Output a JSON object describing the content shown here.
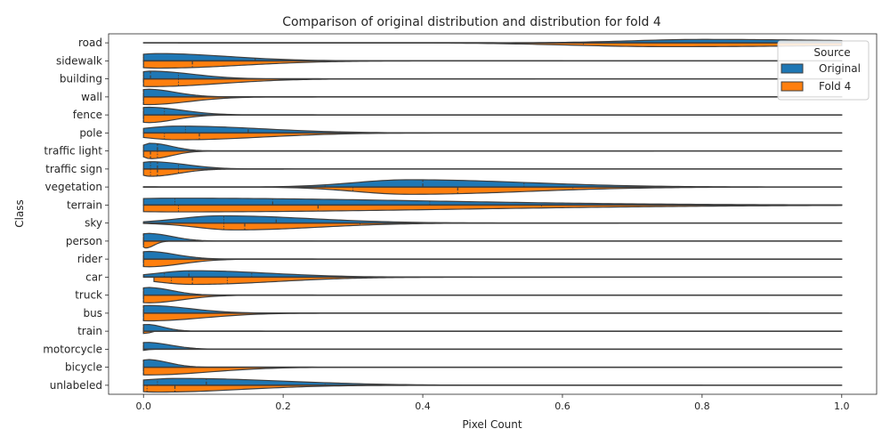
{
  "chart_data": {
    "type": "violin",
    "title": "Comparison of original distribution and distribution for fold 4",
    "xlabel": "Pixel Count",
    "ylabel": "Class",
    "xlim": [
      -0.05,
      1.05
    ],
    "xticks": [
      "0.0",
      "0.2",
      "0.4",
      "0.6",
      "0.8",
      "1.0"
    ],
    "xtick_values": [
      0.0,
      0.2,
      0.4,
      0.6,
      0.8,
      1.0
    ],
    "grid": false,
    "split": true,
    "legend": {
      "title": "Source",
      "position": "top-right"
    },
    "series": [
      {
        "name": "Original",
        "color": "#1f77b4"
      },
      {
        "name": "Fold 4",
        "color": "#ff7f0e"
      }
    ],
    "categories": [
      "road",
      "sidewalk",
      "building",
      "wall",
      "fence",
      "pole",
      "traffic light",
      "traffic sign",
      "vegetation",
      "terrain",
      "sky",
      "person",
      "rider",
      "car",
      "truck",
      "bus",
      "train",
      "motorcycle",
      "bicycle",
      "unlabeled"
    ],
    "violins": [
      {
        "class": "road",
        "original": {
          "min": 0.0,
          "max": 1.0,
          "peak": 0.8,
          "spread": 0.22,
          "scale": 0.4,
          "quartiles": [
            0.285,
            0.455,
            0.655
          ]
        },
        "fold": {
          "min": 0.05,
          "max": 1.0,
          "peak": 0.75,
          "spread": 0.3,
          "scale": 0.45,
          "quartiles": [
            0.26,
            0.47,
            0.63
          ]
        }
      },
      {
        "class": "sidewalk",
        "original": {
          "min": 0.0,
          "max": 1.0,
          "peak": 0.02,
          "spread": 0.1,
          "scale": 0.85,
          "quartiles": [
            0.0,
            0.16,
            0.26
          ]
        },
        "fold": {
          "min": 0.0,
          "max": 0.6,
          "peak": 0.02,
          "spread": 0.12,
          "scale": 0.85,
          "quartiles": [
            0.0,
            0.07,
            0.26
          ]
        }
      },
      {
        "class": "building",
        "original": {
          "min": 0.0,
          "max": 1.0,
          "peak": 0.01,
          "spread": 0.06,
          "scale": 0.9,
          "quartiles": [
            0.0,
            0.01,
            0.05
          ]
        },
        "fold": {
          "min": 0.0,
          "max": 0.56,
          "peak": 0.01,
          "spread": 0.1,
          "scale": 0.9,
          "quartiles": [
            0.0,
            0.0,
            0.05
          ]
        }
      },
      {
        "class": "wall",
        "original": {
          "min": 0.0,
          "max": 1.0,
          "peak": 0.005,
          "spread": 0.04,
          "scale": 0.9,
          "quartiles": [
            0.0,
            0.0,
            0.0
          ]
        },
        "fold": {
          "min": 0.0,
          "max": 1.0,
          "peak": 0.005,
          "spread": 0.06,
          "scale": 0.9,
          "quartiles": [
            0.0,
            0.0,
            0.0
          ]
        }
      },
      {
        "class": "fence",
        "original": {
          "min": 0.0,
          "max": 1.0,
          "peak": 0.005,
          "spread": 0.05,
          "scale": 0.9,
          "quartiles": [
            0.0,
            0.0,
            0.03
          ]
        },
        "fold": {
          "min": 0.0,
          "max": 1.0,
          "peak": 0.005,
          "spread": 0.04,
          "scale": 0.9,
          "quartiles": [
            0.0,
            0.0,
            0.0
          ]
        }
      },
      {
        "class": "pole",
        "original": {
          "min": 0.0,
          "max": 1.0,
          "peak": 0.05,
          "spread": 0.12,
          "scale": 0.8,
          "quartiles": [
            0.06,
            0.15,
            0.3
          ]
        },
        "fold": {
          "min": 0.0,
          "max": 0.94,
          "peak": 0.05,
          "spread": 0.12,
          "scale": 0.8,
          "quartiles": [
            0.03,
            0.08,
            0.32
          ]
        }
      },
      {
        "class": "traffic light",
        "original": {
          "min": 0.0,
          "max": 1.0,
          "peak": 0.01,
          "spread": 0.03,
          "scale": 0.9,
          "quartiles": [
            0.0,
            0.02,
            0.02
          ]
        },
        "fold": {
          "min": 0.0,
          "max": 0.73,
          "peak": 0.01,
          "spread": 0.03,
          "scale": 0.9,
          "quartiles": [
            0.0,
            0.01,
            0.02
          ]
        }
      },
      {
        "class": "traffic sign",
        "original": {
          "min": 0.0,
          "max": 1.0,
          "peak": 0.01,
          "spread": 0.05,
          "scale": 0.85,
          "quartiles": [
            0.01,
            0.02,
            0.05
          ]
        },
        "fold": {
          "min": 0.0,
          "max": 0.2,
          "peak": 0.01,
          "spread": 0.04,
          "scale": 0.85,
          "quartiles": [
            0.01,
            0.02,
            0.05
          ]
        }
      },
      {
        "class": "vegetation",
        "original": {
          "min": 0.0,
          "max": 1.0,
          "peak": 0.38,
          "spread": 0.17,
          "scale": 0.85,
          "quartiles": [
            0.26,
            0.4,
            0.545
          ]
        },
        "fold": {
          "min": 0.0,
          "max": 0.88,
          "peak": 0.38,
          "spread": 0.17,
          "scale": 0.85,
          "quartiles": [
            0.3,
            0.45,
            0.615
          ]
        }
      },
      {
        "class": "terrain",
        "original": {
          "min": 0.0,
          "max": 1.0,
          "peak": 0.05,
          "spread": 0.35,
          "scale": 0.8,
          "quartiles": [
            0.045,
            0.185,
            0.41
          ]
        },
        "fold": {
          "min": 0.0,
          "max": 1.0,
          "peak": 0.05,
          "spread": 0.4,
          "scale": 0.8,
          "quartiles": [
            0.05,
            0.25,
            0.57
          ]
        }
      },
      {
        "class": "sky",
        "original": {
          "min": 0.0,
          "max": 1.0,
          "peak": 0.11,
          "spread": 0.13,
          "scale": 0.85,
          "quartiles": [
            0.115,
            0.19,
            0.35
          ]
        },
        "fold": {
          "min": 0.0,
          "max": 0.68,
          "peak": 0.13,
          "spread": 0.12,
          "scale": 0.8,
          "quartiles": [
            0.115,
            0.145,
            0.31
          ]
        }
      },
      {
        "class": "person",
        "original": {
          "min": 0.0,
          "max": 1.0,
          "peak": 0.005,
          "spread": 0.035,
          "scale": 0.9,
          "quartiles": [
            0.0,
            0.0,
            0.0
          ]
        },
        "fold": {
          "min": 0.0,
          "max": 0.085,
          "peak": 0.003,
          "spread": 0.012,
          "scale": 0.8,
          "quartiles": [
            0.0,
            0.0,
            0.0
          ]
        }
      },
      {
        "class": "rider",
        "original": {
          "min": 0.0,
          "max": 1.0,
          "peak": 0.005,
          "spread": 0.04,
          "scale": 0.9,
          "quartiles": [
            0.0,
            0.0,
            0.0
          ]
        },
        "fold": {
          "min": 0.0,
          "max": 1.0,
          "peak": 0.005,
          "spread": 0.05,
          "scale": 0.9,
          "quartiles": [
            0.0,
            0.0,
            0.0
          ]
        }
      },
      {
        "class": "car",
        "original": {
          "min": 0.0,
          "max": 1.0,
          "peak": 0.07,
          "spread": 0.11,
          "scale": 0.75,
          "quartiles": [
            0.03,
            0.065,
            0.155
          ]
        },
        "fold": {
          "min": 0.015,
          "max": 0.47,
          "peak": 0.07,
          "spread": 0.12,
          "scale": 0.85,
          "quartiles": [
            0.04,
            0.07,
            0.12
          ]
        }
      },
      {
        "class": "truck",
        "original": {
          "min": 0.0,
          "max": 1.0,
          "peak": 0.005,
          "spread": 0.035,
          "scale": 0.9,
          "quartiles": [
            0.0,
            0.0,
            0.0
          ]
        },
        "fold": {
          "min": 0.0,
          "max": 1.0,
          "peak": 0.005,
          "spread": 0.05,
          "scale": 0.9,
          "quartiles": [
            0.0,
            0.0,
            0.0
          ]
        }
      },
      {
        "class": "bus",
        "original": {
          "min": 0.0,
          "max": 1.0,
          "peak": 0.005,
          "spread": 0.06,
          "scale": 0.9,
          "quartiles": [
            0.0,
            0.0,
            0.0
          ]
        },
        "fold": {
          "min": 0.0,
          "max": 0.895,
          "peak": 0.005,
          "spread": 0.08,
          "scale": 0.9,
          "quartiles": [
            0.0,
            0.0,
            0.0
          ]
        }
      },
      {
        "class": "train",
        "original": {
          "min": 0.0,
          "max": 1.0,
          "peak": 0.003,
          "spread": 0.025,
          "scale": 0.8,
          "quartiles": [
            0.0,
            0.0,
            0.0
          ]
        },
        "fold": {
          "min": 0.0,
          "max": 1.0,
          "peak": 0.002,
          "spread": 0.005,
          "scale": 0.4,
          "quartiles": [
            0.0,
            0.0,
            0.0
          ]
        }
      },
      {
        "class": "motorcycle",
        "original": {
          "min": 0.0,
          "max": 1.0,
          "peak": 0.003,
          "spread": 0.035,
          "scale": 0.8,
          "quartiles": [
            0.0,
            0.0,
            0.0
          ]
        },
        "fold": {
          "min": 0.0,
          "max": 1.0,
          "peak": 0.002,
          "spread": 0.003,
          "scale": 0.4,
          "quartiles": [
            0.0,
            0.0,
            0.0
          ]
        }
      },
      {
        "class": "bicycle",
        "original": {
          "min": 0.0,
          "max": 1.0,
          "peak": 0.005,
          "spread": 0.03,
          "scale": 0.9,
          "quartiles": [
            0.0,
            0.0,
            0.0
          ]
        },
        "fold": {
          "min": 0.0,
          "max": 1.0,
          "peak": 0.005,
          "spread": 0.09,
          "scale": 0.9,
          "quartiles": [
            0.0,
            0.0,
            0.0
          ]
        }
      },
      {
        "class": "unlabeled",
        "original": {
          "min": 0.0,
          "max": 1.0,
          "peak": 0.05,
          "spread": 0.15,
          "scale": 0.8,
          "quartiles": [
            0.02,
            0.09,
            0.26
          ]
        },
        "fold": {
          "min": 0.0,
          "max": 0.8,
          "peak": 0.02,
          "spread": 0.12,
          "scale": 0.8,
          "quartiles": [
            0.005,
            0.045,
            0.26
          ]
        }
      }
    ]
  }
}
